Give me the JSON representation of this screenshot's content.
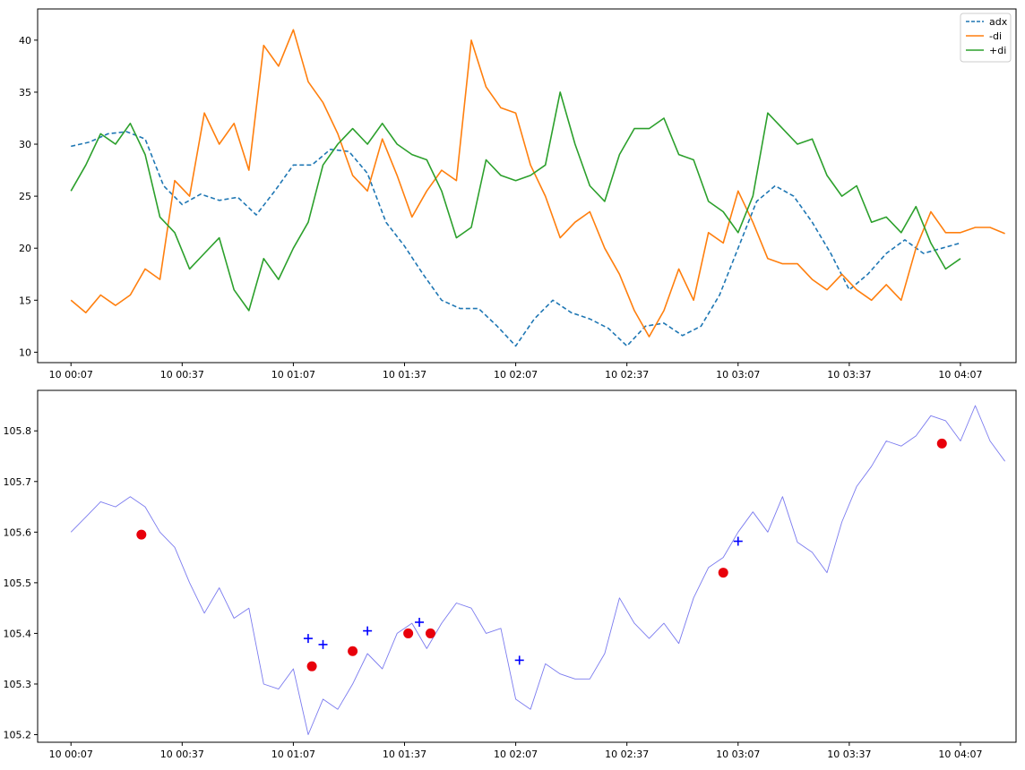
{
  "chart_data": [
    {
      "type": "line",
      "title": "",
      "xlabel": "",
      "ylabel": "",
      "xlim_minutes": [
        -9,
        255
      ],
      "ylim": [
        9,
        43
      ],
      "x_tick_labels": [
        "10 00:07",
        "10 00:37",
        "10 01:07",
        "10 01:37",
        "10 02:07",
        "10 02:37",
        "10 03:07",
        "10 03:37",
        "10 04:07"
      ],
      "y_tick_labels": [
        "10",
        "15",
        "20",
        "25",
        "30",
        "35",
        "40"
      ],
      "legend": {
        "position": "top-right"
      },
      "series": [
        {
          "name": "adx",
          "color": "#1f77b4",
          "dash": "dashed",
          "x_minutes": [
            0,
            5,
            10,
            15,
            20,
            25,
            30,
            35,
            40,
            45,
            50,
            55,
            60,
            65,
            70,
            75,
            80,
            85,
            90,
            95,
            100,
            105,
            110,
            115,
            120,
            125,
            130,
            135,
            140,
            145,
            150,
            155,
            160,
            165,
            170,
            175,
            180,
            185,
            190,
            195,
            200,
            205,
            210,
            215,
            220,
            225,
            230,
            235,
            240
          ],
          "values": [
            29.8,
            30.2,
            31.0,
            31.2,
            30.5,
            26.0,
            24.2,
            25.2,
            24.6,
            24.9,
            23.2,
            25.5,
            28.0,
            28.0,
            29.5,
            29.3,
            27.2,
            22.5,
            20.2,
            17.5,
            15.0,
            14.2,
            14.2,
            12.5,
            10.6,
            13.2,
            15.0,
            13.8,
            13.2,
            12.3,
            10.6,
            12.5,
            12.8,
            11.6,
            12.5,
            15.5,
            20.0,
            24.5,
            26.0,
            25.0,
            22.5,
            19.5,
            16.0,
            17.5,
            19.5,
            20.8,
            19.5,
            20.0,
            20.5
          ]
        },
        {
          "name": "-di",
          "color": "#ff7f0e",
          "dash": "solid",
          "x_minutes": [
            0,
            4,
            8,
            12,
            16,
            20,
            24,
            28,
            32,
            36,
            40,
            44,
            48,
            52,
            56,
            60,
            64,
            68,
            72,
            76,
            80,
            84,
            88,
            92,
            96,
            100,
            104,
            108,
            112,
            116,
            120,
            124,
            128,
            132,
            136,
            140,
            144,
            148,
            152,
            156,
            160,
            164,
            168,
            172,
            176,
            180,
            184,
            188,
            192,
            196,
            200,
            204,
            208,
            212,
            216,
            220,
            224,
            228,
            232,
            236,
            240,
            244,
            248,
            252
          ],
          "values": [
            15.0,
            13.8,
            15.5,
            14.5,
            15.5,
            18.0,
            17.0,
            26.5,
            25.0,
            33.0,
            30.0,
            32.0,
            27.5,
            39.5,
            37.5,
            41.0,
            36.0,
            34.0,
            31.0,
            27.0,
            25.5,
            30.5,
            27.0,
            23.0,
            25.5,
            27.5,
            26.5,
            40.0,
            35.5,
            33.5,
            33.0,
            28.0,
            25.0,
            21.0,
            22.5,
            23.5,
            20.0,
            17.5,
            14.0,
            11.5,
            14.0,
            18.0,
            15.0,
            21.5,
            20.5,
            25.5,
            22.5,
            19.0,
            18.5,
            18.5,
            17.0,
            16.0,
            17.5,
            16.0,
            15.0,
            16.5,
            15.0,
            20.0,
            23.5,
            21.5,
            21.5,
            22.0,
            22.0,
            21.4
          ]
        },
        {
          "name": "+di",
          "color": "#2ca02c",
          "dash": "solid",
          "x_minutes": [
            0,
            4,
            8,
            12,
            16,
            20,
            24,
            28,
            32,
            36,
            40,
            44,
            48,
            52,
            56,
            60,
            64,
            68,
            72,
            76,
            80,
            84,
            88,
            92,
            96,
            100,
            104,
            108,
            112,
            116,
            120,
            124,
            128,
            132,
            136,
            140,
            144,
            148,
            152,
            156,
            160,
            164,
            168,
            172,
            176,
            180,
            184,
            188,
            192,
            196,
            200,
            204,
            208,
            212,
            216,
            220,
            224,
            228,
            232,
            236,
            240
          ],
          "values": [
            25.5,
            28.0,
            31.0,
            30.0,
            32.0,
            29.0,
            23.0,
            21.5,
            18.0,
            19.5,
            21.0,
            16.0,
            14.0,
            19.0,
            17.0,
            20.0,
            22.5,
            28.0,
            30.0,
            31.5,
            30.0,
            32.0,
            30.0,
            29.0,
            28.5,
            25.5,
            21.0,
            22.0,
            28.5,
            27.0,
            26.5,
            27.0,
            28.0,
            35.0,
            30.0,
            26.0,
            24.5,
            29.0,
            31.5,
            31.5,
            32.5,
            29.0,
            28.5,
            24.5,
            23.5,
            21.5,
            25.0,
            33.0,
            31.5,
            30.0,
            30.5,
            27.0,
            25.0,
            26.0,
            22.5,
            23.0,
            21.5,
            24.0,
            20.5,
            18.0,
            19.0
          ]
        }
      ]
    },
    {
      "type": "line",
      "title": "",
      "xlabel": "",
      "ylabel": "",
      "xlim_minutes": [
        -9,
        255
      ],
      "ylim": [
        105.185,
        105.88
      ],
      "x_tick_labels": [
        "10 00:07",
        "10 00:37",
        "10 01:07",
        "10 01:37",
        "10 02:07",
        "10 02:37",
        "10 03:07",
        "10 03:37",
        "10 04:07"
      ],
      "y_tick_labels": [
        "105.2",
        "105.3",
        "105.4",
        "105.5",
        "105.6",
        "105.7",
        "105.8"
      ],
      "series": [
        {
          "name": "",
          "color": "#7b7bef",
          "x_minutes": [
            0,
            4,
            8,
            12,
            16,
            20,
            24,
            28,
            32,
            36,
            40,
            44,
            48,
            52,
            56,
            60,
            64,
            68,
            72,
            76,
            80,
            84,
            88,
            92,
            96,
            100,
            104,
            108,
            112,
            116,
            120,
            124,
            128,
            132,
            136,
            140,
            144,
            148,
            152,
            156,
            160,
            164,
            168,
            172,
            176,
            180,
            184,
            188,
            192,
            196,
            200,
            204,
            208,
            212,
            216,
            220,
            224,
            228,
            232,
            236,
            240,
            244,
            248,
            252
          ],
          "values": [
            105.6,
            105.63,
            105.66,
            105.65,
            105.67,
            105.65,
            105.6,
            105.57,
            105.5,
            105.44,
            105.49,
            105.43,
            105.45,
            105.3,
            105.29,
            105.33,
            105.2,
            105.27,
            105.25,
            105.3,
            105.36,
            105.33,
            105.4,
            105.42,
            105.37,
            105.42,
            105.46,
            105.45,
            105.4,
            105.41,
            105.27,
            105.25,
            105.34,
            105.32,
            105.31,
            105.31,
            105.36,
            105.47,
            105.42,
            105.39,
            105.42,
            105.38,
            105.47,
            105.53,
            105.55,
            105.6,
            105.64,
            105.6,
            105.67,
            105.58,
            105.56,
            105.52,
            105.62,
            105.69,
            105.73,
            105.78,
            105.77,
            105.79,
            105.83,
            105.82,
            105.78,
            105.85,
            105.78,
            105.74
          ]
        }
      ],
      "markers": {
        "red_dots": {
          "color": "#e8000b",
          "points": [
            [
              19,
              105.595
            ],
            [
              65,
              105.335
            ],
            [
              76,
              105.365
            ],
            [
              91,
              105.4
            ],
            [
              97,
              105.4
            ],
            [
              176,
              105.52
            ],
            [
              235,
              105.775
            ]
          ]
        },
        "blue_plus": {
          "color": "#0000ff",
          "points": [
            [
              64,
              105.39
            ],
            [
              68,
              105.378
            ],
            [
              80,
              105.405
            ],
            [
              94,
              105.422
            ],
            [
              121,
              105.347
            ],
            [
              180,
              105.582
            ]
          ]
        }
      }
    }
  ]
}
